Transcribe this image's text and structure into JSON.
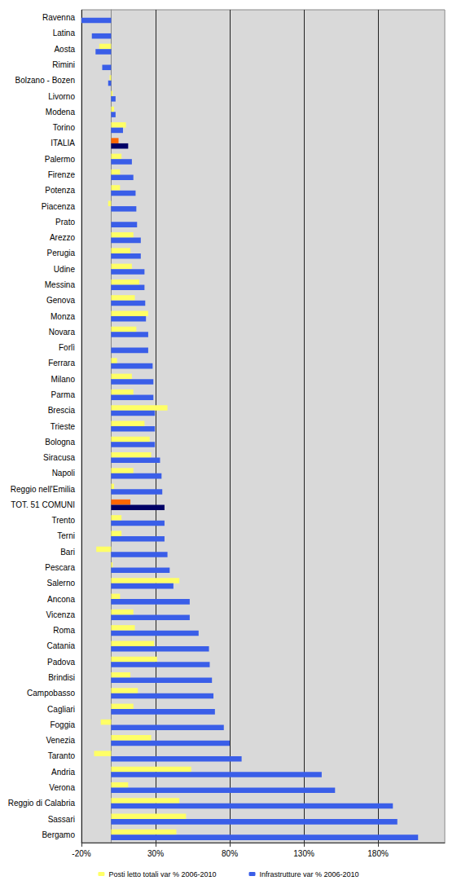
{
  "chart_data": {
    "type": "bar",
    "orientation": "horizontal",
    "grid": true,
    "legend": "bottom",
    "categories": [
      "Ravenna",
      "Latina",
      "Aosta",
      "Rimini",
      "Bolzano - Bozen",
      "Livorno",
      "Modena",
      "Torino",
      "ITALIA",
      "Palermo",
      "Firenze",
      "Potenza",
      "Piacenza",
      "Prato",
      "Arezzo",
      "Perugia",
      "Udine",
      "Messina",
      "Genova",
      "Monza",
      "Novara",
      "Forlì",
      "Ferrara",
      "Milano",
      "Parma",
      "Brescia",
      "Trieste",
      "Bologna",
      "Siracusa",
      "Napoli",
      "Reggio nell'Emilia",
      "TOT. 51 COMUNI",
      "Trento",
      "Terni",
      "Bari",
      "Pescara",
      "Salerno",
      "Ancona",
      "Vicenza",
      "Roma",
      "Catania",
      "Padova",
      "Brindisi",
      "Campobasso",
      "Cagliari",
      "Foggia",
      "Venezia",
      "Taranto",
      "Andria",
      "Verona",
      "Reggio di Calabria",
      "Sassari",
      "Bergamo"
    ],
    "xlim": [
      -20,
      225
    ],
    "xticks": [
      {
        "value": -20,
        "label": "-20%"
      },
      {
        "value": 30,
        "label": "30%"
      },
      {
        "value": 80,
        "label": "80%"
      },
      {
        "value": 130,
        "label": "130%"
      },
      {
        "value": 180,
        "label": "180%"
      }
    ],
    "series": [
      {
        "name": "Posti letto totali var % 2006-2010",
        "color": "#ffff66",
        "values": [
          0,
          0,
          -8,
          0,
          -1,
          1,
          2,
          10,
          5,
          7,
          6,
          6,
          -2,
          0,
          15,
          13,
          14,
          19,
          16,
          25,
          17,
          0,
          4,
          14,
          15,
          38,
          22.5,
          26,
          27,
          15,
          2,
          13,
          7,
          7,
          -10,
          1,
          46,
          6,
          15,
          16,
          29,
          31,
          13,
          18,
          15,
          -7,
          27,
          -11.5,
          54,
          11.5,
          46,
          50.5,
          44
        ],
        "colors": [
          "#ffff66",
          "#ffff66",
          "#ffff66",
          "#ffff66",
          "#ffff66",
          "#ffff66",
          "#ffff66",
          "#ffff66",
          "#ff6600",
          "#ffff66",
          "#ffff66",
          "#ffff66",
          "#ffff66",
          "#ffff66",
          "#ffff66",
          "#ffff66",
          "#ffff66",
          "#ffff66",
          "#ffff66",
          "#ffff66",
          "#ffff66",
          "#ffff66",
          "#ffff66",
          "#ffff66",
          "#ffff66",
          "#ffff66",
          "#ffff66",
          "#ffff66",
          "#ffff66",
          "#ffff66",
          "#ffff66",
          "#ff6600",
          "#ffff66",
          "#ffff66",
          "#ffff66",
          "#ffff66",
          "#ffff66",
          "#ffff66",
          "#ffff66",
          "#ffff66",
          "#ffff66",
          "#ffff66",
          "#ffff66",
          "#ffff66",
          "#ffff66",
          "#ffff66",
          "#ffff66",
          "#ffff66",
          "#ffff66",
          "#ffff66",
          "#ffff66",
          "#ffff66",
          "#ffff66"
        ]
      },
      {
        "name": "Infrastrutture var % 2006-2010",
        "color": "#3a5ee8",
        "values": [
          -20,
          -13,
          -10.5,
          -6,
          -2,
          3,
          3,
          8,
          11.5,
          14,
          15,
          16.5,
          17,
          17.5,
          20,
          20,
          22.5,
          22.5,
          23,
          23.5,
          25,
          25,
          28,
          28.5,
          28.5,
          29.5,
          29.5,
          29.5,
          33,
          34,
          34.5,
          36,
          36,
          36,
          38,
          39.5,
          42,
          53,
          53,
          59,
          66,
          66.5,
          68,
          69,
          70,
          76,
          80,
          88,
          142,
          151,
          190,
          193,
          207
        ],
        "colors": [
          "#3a5ee8",
          "#3a5ee8",
          "#3a5ee8",
          "#3a5ee8",
          "#3a5ee8",
          "#3a5ee8",
          "#3a5ee8",
          "#3a5ee8",
          "#000066",
          "#3a5ee8",
          "#3a5ee8",
          "#3a5ee8",
          "#3a5ee8",
          "#3a5ee8",
          "#3a5ee8",
          "#3a5ee8",
          "#3a5ee8",
          "#3a5ee8",
          "#3a5ee8",
          "#3a5ee8",
          "#3a5ee8",
          "#3a5ee8",
          "#3a5ee8",
          "#3a5ee8",
          "#3a5ee8",
          "#3a5ee8",
          "#3a5ee8",
          "#3a5ee8",
          "#3a5ee8",
          "#3a5ee8",
          "#3a5ee8",
          "#000066",
          "#3a5ee8",
          "#3a5ee8",
          "#3a5ee8",
          "#3a5ee8",
          "#3a5ee8",
          "#3a5ee8",
          "#3a5ee8",
          "#3a5ee8",
          "#3a5ee8",
          "#3a5ee8",
          "#3a5ee8",
          "#3a5ee8",
          "#3a5ee8",
          "#3a5ee8",
          "#3a5ee8",
          "#3a5ee8",
          "#3a5ee8",
          "#3a5ee8",
          "#3a5ee8",
          "#3a5ee8",
          "#3a5ee8"
        ]
      }
    ]
  }
}
